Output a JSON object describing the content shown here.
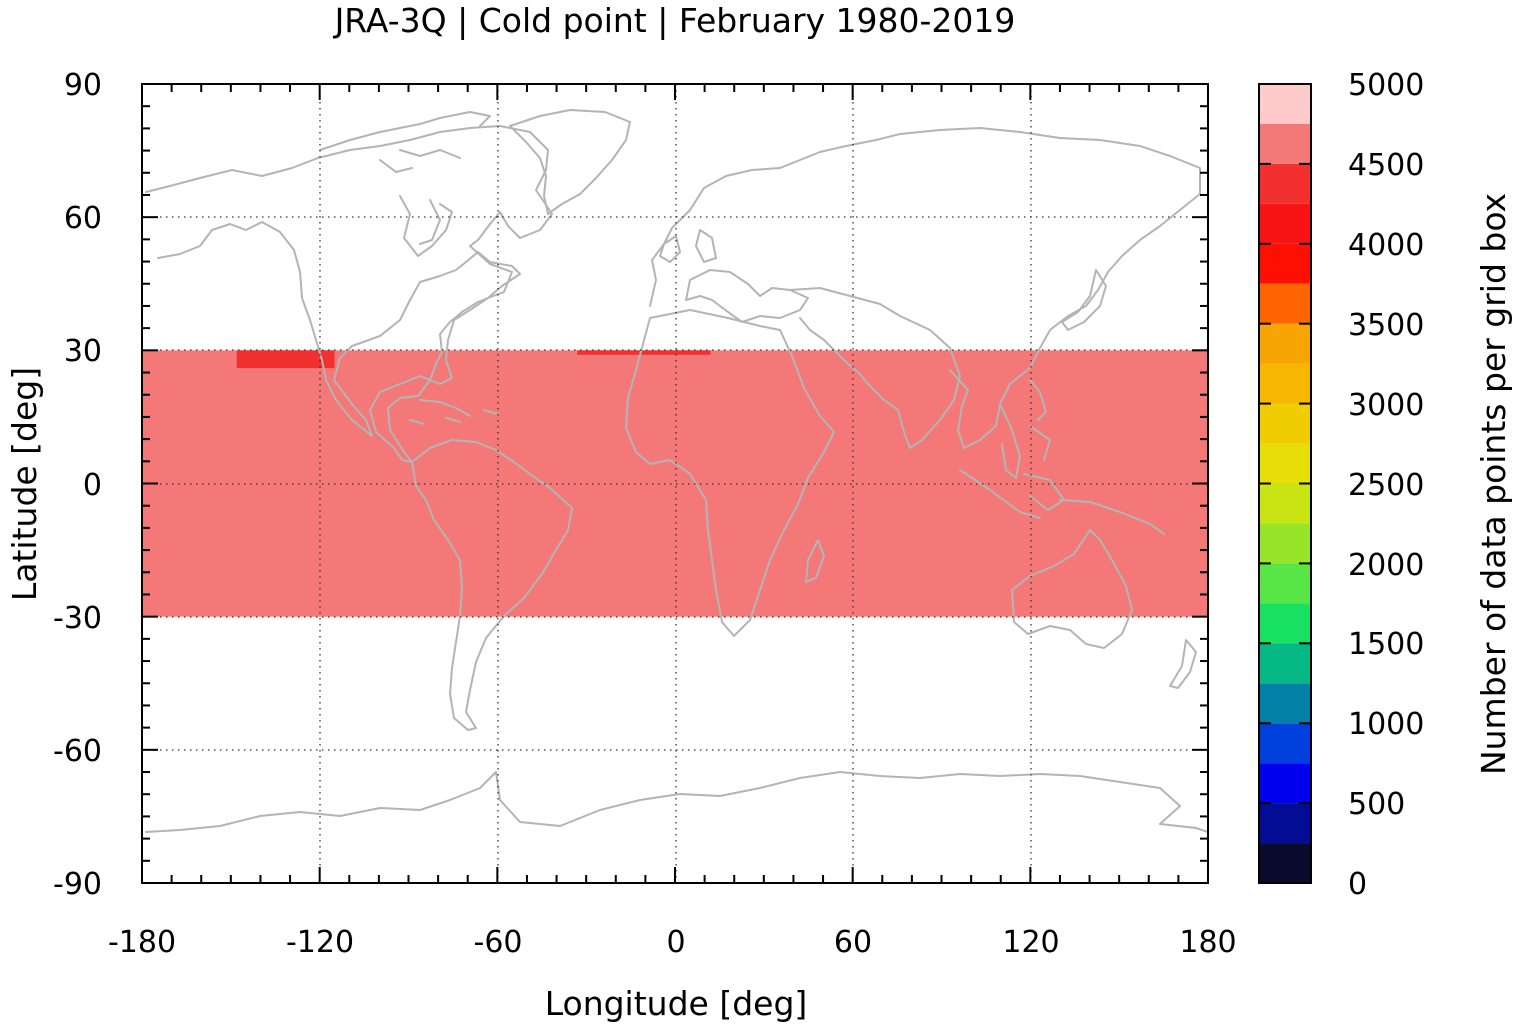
{
  "chart_data": {
    "type": "heatmap",
    "title": "JRA-3Q | Cold point | February 1980-2019",
    "xlabel": "Longitude [deg]",
    "ylabel": "Latitude [deg]",
    "xlim": [
      -180,
      180
    ],
    "ylim": [
      -90,
      90
    ],
    "xticks": [
      "-180",
      "-120",
      "-60",
      "0",
      "60",
      "120",
      "180"
    ],
    "yticks": [
      "90",
      "60",
      "30",
      "0",
      "-30",
      "-60",
      "-90"
    ],
    "grid": true,
    "grid_lines": {
      "lon": [
        -120,
        -60,
        0,
        60,
        120
      ],
      "lat": [
        -60,
        0,
        60
      ]
    },
    "data_region": {
      "lon": [
        -180,
        180
      ],
      "lat": [
        -30,
        30
      ],
      "value_range": [
        4500,
        4750
      ]
    },
    "hotspots": [
      {
        "lon": [
          -148,
          -115
        ],
        "lat": [
          26,
          30
        ],
        "value_range": [
          4250,
          4500
        ]
      },
      {
        "lon": [
          -33,
          12
        ],
        "lat": [
          29,
          30
        ],
        "value_range": [
          4250,
          4500
        ]
      }
    ],
    "coastline_color": "#b4b4b4",
    "colorbar": {
      "label": "Number of data points per grid box",
      "ticks": [
        "0",
        "500",
        "1000",
        "1500",
        "2000",
        "2500",
        "3000",
        "3500",
        "4000",
        "4500",
        "5000"
      ],
      "range": [
        0,
        5000
      ],
      "step": 250,
      "colors": [
        "#0b0b2e",
        "#040c96",
        "#0000ee",
        "#0040dc",
        "#0280a8",
        "#06b884",
        "#18e060",
        "#58e646",
        "#98e428",
        "#c8e412",
        "#e6de06",
        "#f0cc02",
        "#f6b602",
        "#f8a402",
        "#fe6400",
        "#fe1000",
        "#f81414",
        "#f23030",
        "#f47878",
        "#fecaca"
      ]
    }
  }
}
